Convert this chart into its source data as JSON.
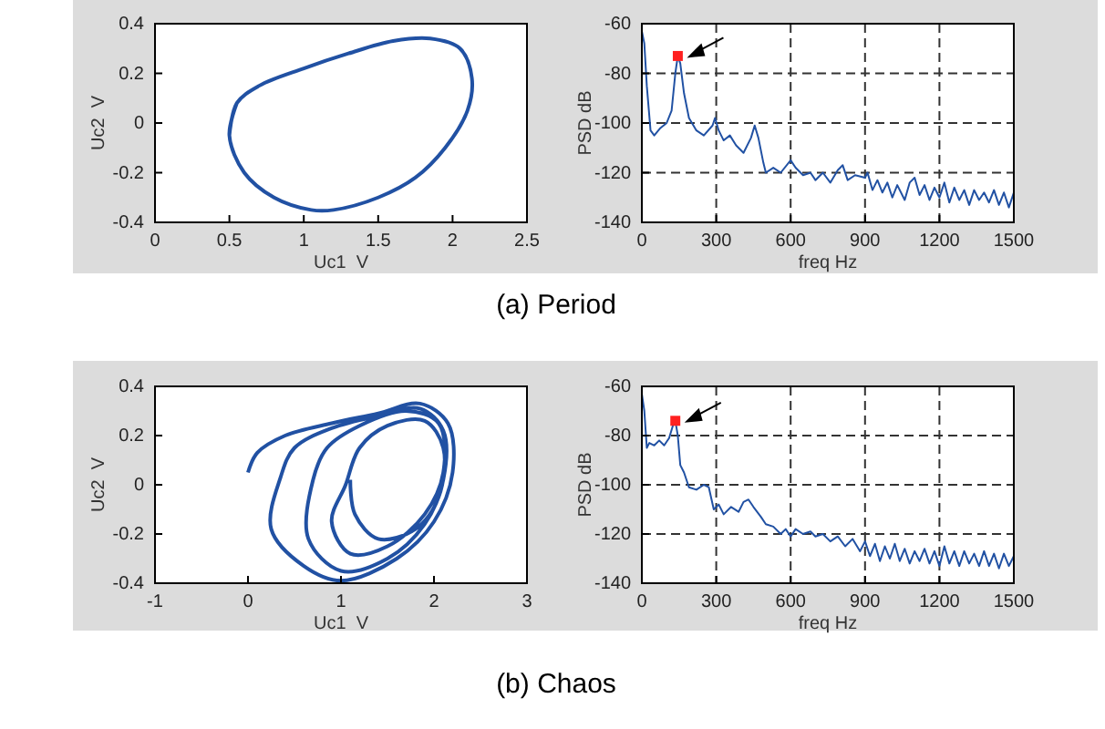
{
  "chart_data": [
    {
      "type": "line",
      "xlabel": "Uc1  V",
      "ylabel": "Uc2  V",
      "xlim": [
        0,
        2.5
      ],
      "xticks": [
        0,
        0.5,
        1,
        1.5,
        2,
        2.5
      ],
      "ylim": [
        -0.4,
        0.4
      ],
      "yticks": [
        -0.4,
        -0.2,
        0,
        0.2,
        0.4
      ],
      "grid": false,
      "annotations": [
        "(a) Period"
      ],
      "series": [
        {
          "color": "#2151a3",
          "x": [
            0.5,
            0.55,
            0.7,
            1.0,
            1.3,
            1.6,
            1.85,
            2.05,
            2.13,
            2.1,
            1.95,
            1.75,
            1.5,
            1.2,
            1.05,
            0.8,
            0.6,
            0.5,
            0.55
          ],
          "values": [
            -0.05,
            0.08,
            0.15,
            0.22,
            0.28,
            0.33,
            0.34,
            0.3,
            0.18,
            0.05,
            -0.1,
            -0.22,
            -0.3,
            -0.35,
            -0.35,
            -0.3,
            -0.2,
            -0.05,
            0.08
          ]
        }
      ]
    },
    {
      "type": "line",
      "xlabel": "freq Hz",
      "ylabel": "PSD dB",
      "xlim": [
        0,
        1500
      ],
      "xticks": [
        0,
        300,
        600,
        900,
        1200,
        1500
      ],
      "ylim": [
        -140,
        -60
      ],
      "yticks": [
        -140,
        -120,
        -100,
        -80,
        -60
      ],
      "grid": true,
      "series": [
        {
          "color": "#2151a3",
          "x": [
            0,
            10,
            20,
            35,
            50,
            75,
            100,
            120,
            135,
            145,
            155,
            170,
            190,
            220,
            250,
            285,
            295,
            310,
            330,
            355,
            380,
            410,
            440,
            455,
            470,
            490,
            500,
            530,
            560,
            600,
            620,
            650,
            680,
            700,
            730,
            760,
            790,
            810,
            830,
            860,
            900,
            910,
            930,
            950,
            970,
            990,
            1010,
            1030,
            1060,
            1080,
            1100,
            1120,
            1140,
            1160,
            1180,
            1200,
            1220,
            1240,
            1260,
            1280,
            1300,
            1320,
            1340,
            1360,
            1380,
            1400,
            1420,
            1440,
            1460,
            1480,
            1500
          ],
          "values": [
            -63,
            -68,
            -85,
            -103,
            -105,
            -102,
            -100,
            -95,
            -80,
            -73,
            -76,
            -88,
            -98,
            -103,
            -105,
            -101,
            -98,
            -103,
            -107,
            -105,
            -109,
            -112,
            -106,
            -101,
            -106,
            -116,
            -120,
            -118,
            -120,
            -115,
            -118,
            -121,
            -120,
            -123,
            -120,
            -124,
            -119,
            -117,
            -123,
            -121,
            -122,
            -120,
            -127,
            -123,
            -128,
            -124,
            -130,
            -125,
            -131,
            -124,
            -122,
            -129,
            -125,
            -131,
            -126,
            -130,
            -124,
            -132,
            -126,
            -131,
            -127,
            -133,
            -127,
            -131,
            -128,
            -132,
            -127,
            -133,
            -128,
            -134,
            -128
          ]
        },
        {
          "type": "scatter",
          "color": "#ff2020",
          "marker": "square",
          "x": [
            145
          ],
          "values": [
            -73
          ]
        }
      ]
    },
    {
      "type": "line",
      "xlabel": "Uc1  V",
      "ylabel": "Uc2  V",
      "xlim": [
        -1,
        3
      ],
      "xticks": [
        -1,
        0,
        1,
        2,
        3
      ],
      "ylim": [
        -0.4,
        0.4
      ],
      "yticks": [
        -0.4,
        -0.2,
        0,
        0.2,
        0.4
      ],
      "grid": false,
      "annotations": [
        "(b) Chaos"
      ],
      "series": [
        {
          "color": "#2151a3",
          "x": [
            0.0,
            0.1,
            0.4,
            0.9,
            1.4,
            1.85,
            2.15,
            2.2,
            2.0,
            1.6,
            1.0,
            0.6,
            0.25,
            0.35,
            0.5,
            0.9,
            1.4,
            1.85,
            2.1,
            2.1,
            1.9,
            1.5,
            1.0,
            0.65,
            0.7,
            0.85,
            1.2,
            1.7,
            2.05,
            2.1,
            1.9,
            1.5,
            1.1,
            0.9,
            1.05,
            1.2,
            1.5,
            1.9,
            2.1,
            2.05,
            1.8,
            1.4,
            1.15,
            1.1
          ],
          "values": [
            0.05,
            0.13,
            0.2,
            0.25,
            0.29,
            0.33,
            0.25,
            0.05,
            -0.15,
            -0.3,
            -0.39,
            -0.33,
            -0.18,
            0.03,
            0.15,
            0.23,
            0.28,
            0.31,
            0.22,
            0.02,
            -0.16,
            -0.3,
            -0.35,
            -0.22,
            0.02,
            0.15,
            0.24,
            0.3,
            0.25,
            0.05,
            -0.12,
            -0.25,
            -0.28,
            -0.15,
            0.0,
            0.15,
            0.24,
            0.26,
            0.15,
            -0.05,
            -0.18,
            -0.22,
            -0.12,
            0.02
          ]
        }
      ]
    },
    {
      "type": "line",
      "xlabel": "freq Hz",
      "ylabel": "PSD dB",
      "xlim": [
        0,
        1500
      ],
      "xticks": [
        0,
        300,
        600,
        900,
        1200,
        1500
      ],
      "ylim": [
        -140,
        -60
      ],
      "yticks": [
        -140,
        -120,
        -100,
        -80,
        -60
      ],
      "grid": true,
      "series": [
        {
          "color": "#2151a3",
          "x": [
            0,
            10,
            20,
            30,
            50,
            70,
            90,
            110,
            125,
            135,
            145,
            155,
            170,
            190,
            220,
            250,
            270,
            290,
            310,
            330,
            360,
            390,
            410,
            430,
            450,
            480,
            500,
            530,
            560,
            580,
            600,
            620,
            650,
            680,
            700,
            730,
            760,
            790,
            820,
            850,
            880,
            900,
            920,
            940,
            960,
            980,
            1000,
            1020,
            1040,
            1060,
            1080,
            1100,
            1120,
            1140,
            1160,
            1180,
            1200,
            1220,
            1240,
            1260,
            1280,
            1300,
            1320,
            1340,
            1360,
            1380,
            1400,
            1420,
            1440,
            1460,
            1480,
            1500
          ],
          "values": [
            -63,
            -70,
            -85,
            -83,
            -84,
            -82,
            -84,
            -81,
            -76,
            -74,
            -80,
            -92,
            -95,
            -101,
            -102,
            -100,
            -101,
            -110,
            -108,
            -112,
            -109,
            -111,
            -107,
            -106,
            -109,
            -113,
            -116,
            -117,
            -120,
            -118,
            -121,
            -118,
            -120,
            -119,
            -121,
            -120,
            -123,
            -121,
            -125,
            -122,
            -127,
            -123,
            -129,
            -124,
            -131,
            -125,
            -130,
            -124,
            -131,
            -126,
            -132,
            -127,
            -131,
            -126,
            -132,
            -127,
            -133,
            -125,
            -132,
            -127,
            -133,
            -127,
            -132,
            -128,
            -133,
            -127,
            -133,
            -128,
            -134,
            -128,
            -133,
            -129
          ]
        },
        {
          "type": "scatter",
          "color": "#ff2020",
          "marker": "square",
          "x": [
            135
          ],
          "values": [
            -74
          ]
        }
      ]
    }
  ]
}
